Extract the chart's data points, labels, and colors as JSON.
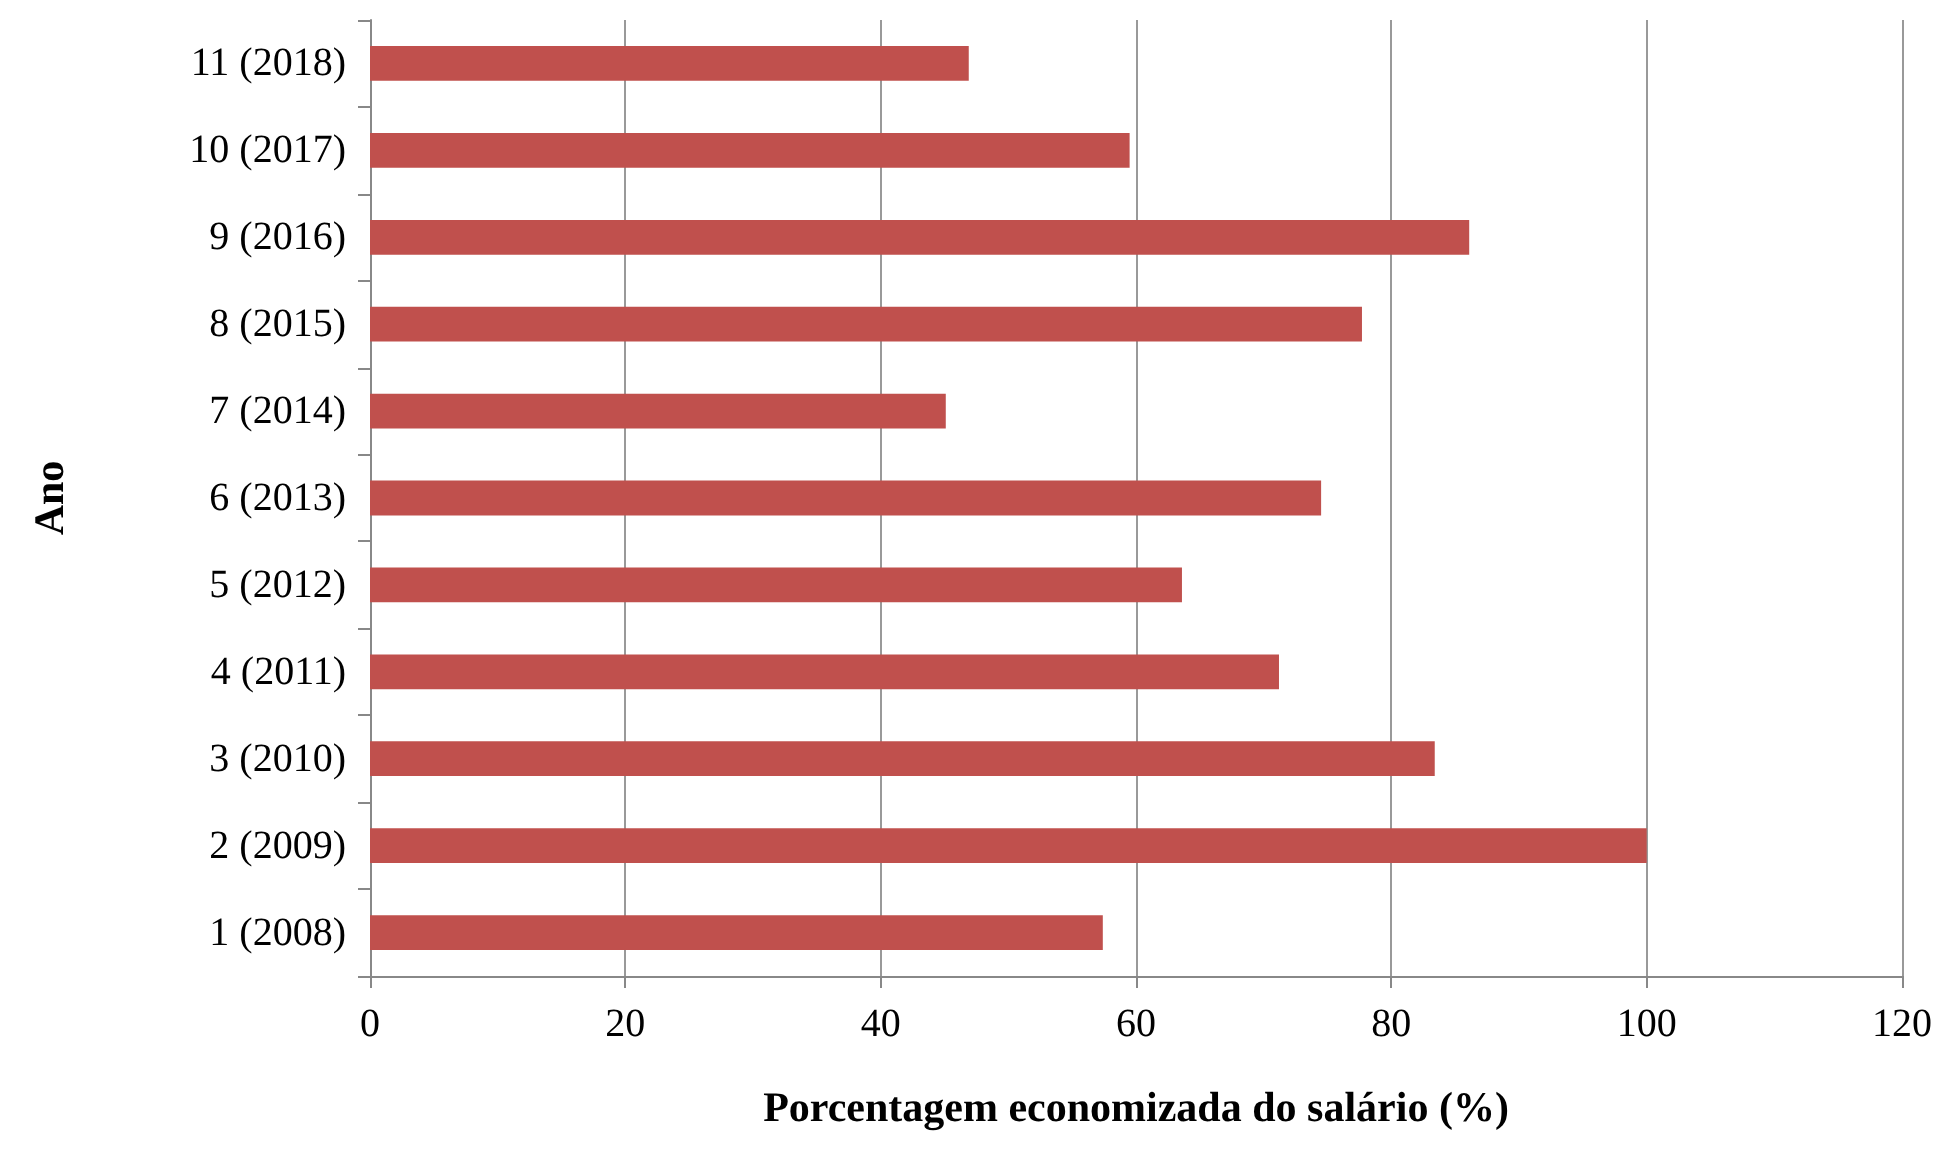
{
  "chart_data": {
    "type": "bar",
    "orientation": "horizontal",
    "xlabel": "Porcentagem economizada do salário (%)",
    "ylabel": "Ano",
    "categories": [
      "11 (2018)",
      "10 (2017)",
      "9 (2016)",
      "8 (2015)",
      "7 (2014)",
      "6 (2013)",
      "5 (2012)",
      "4 (2011)",
      "3 (2010)",
      "2 (2009)",
      "1 (2008)"
    ],
    "values": [
      46.9,
      59.5,
      86.1,
      77.7,
      45.1,
      74.5,
      63.6,
      71.2,
      83.4,
      100,
      57.4
    ],
    "color": "#c0504d",
    "xlim": [
      0,
      120
    ],
    "xticks": [
      0,
      20,
      40,
      60,
      80,
      100,
      120
    ],
    "grid": "x"
  }
}
